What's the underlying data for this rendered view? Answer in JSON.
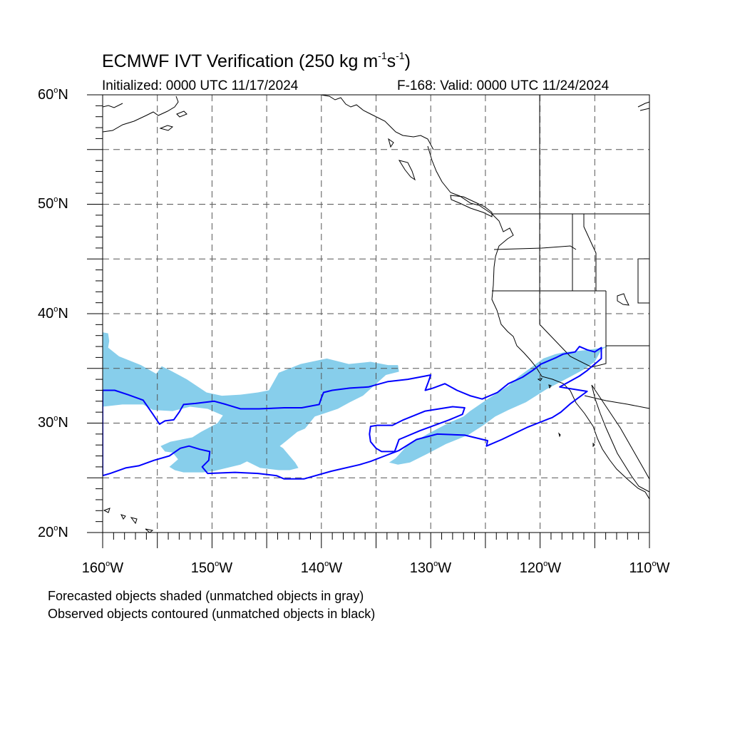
{
  "title": {
    "text": "ECMWF IVT Verification (250 kg m",
    "exp1": "-1",
    "mid": "s",
    "exp2": "-1",
    "end": ")"
  },
  "init_text": "Initialized: 0000 UTC 11/17/2024",
  "valid_text": "F-168: Valid: 0000 UTC 11/24/2024",
  "lat_labels": [
    {
      "num": "60",
      "deg": "o",
      "hem": "N"
    },
    {
      "num": "50",
      "deg": "o",
      "hem": "N"
    },
    {
      "num": "40",
      "deg": "o",
      "hem": "N"
    },
    {
      "num": "30",
      "deg": "o",
      "hem": "N"
    },
    {
      "num": "20",
      "deg": "o",
      "hem": "N"
    }
  ],
  "lon_labels": [
    {
      "num": "160",
      "deg": "o",
      "hem": "W"
    },
    {
      "num": "150",
      "deg": "o",
      "hem": "W"
    },
    {
      "num": "140",
      "deg": "o",
      "hem": "W"
    },
    {
      "num": "130",
      "deg": "o",
      "hem": "W"
    },
    {
      "num": "120",
      "deg": "o",
      "hem": "W"
    },
    {
      "num": "110",
      "deg": "o",
      "hem": "W"
    }
  ],
  "notes": [
    "Forecasted objects shaded (unmatched objects in gray)",
    "Observed objects contoured (unmatched objects in black)"
  ],
  "map": {
    "lon_range": [
      -160,
      -110
    ],
    "lat_range": [
      20,
      60
    ],
    "grid_interval_deg": 5,
    "colors": {
      "forecast_fill": "#87ceeb",
      "observed_contour": "#0000ff",
      "coastline": "#000000",
      "grid": "#555555"
    },
    "forecast_objects": [
      [
        [
          -160,
          38.3
        ],
        [
          -159.5,
          38.2
        ],
        [
          -159.4,
          37.5
        ],
        [
          -159.5,
          36.9
        ],
        [
          -158.5,
          36.1
        ],
        [
          -156.5,
          35.3
        ],
        [
          -155.1,
          34.5
        ],
        [
          -154.6,
          35.2
        ],
        [
          -153.8,
          34.8
        ],
        [
          -152.3,
          34.0
        ],
        [
          -150.5,
          32.8
        ],
        [
          -149.1,
          32.5
        ],
        [
          -147.4,
          32.6
        ],
        [
          -145.8,
          32.8
        ],
        [
          -144.8,
          33.0
        ],
        [
          -143.9,
          34.6
        ],
        [
          -141.9,
          35.4
        ],
        [
          -139.5,
          35.9
        ],
        [
          -137.5,
          35.4
        ],
        [
          -135.5,
          35.6
        ],
        [
          -133.9,
          35.3
        ],
        [
          -133,
          35.3
        ],
        [
          -132.9,
          34.7
        ],
        [
          -134.1,
          34.4
        ],
        [
          -136.2,
          32.5
        ],
        [
          -137.4,
          31.9
        ],
        [
          -138.5,
          31.3
        ],
        [
          -140,
          30.8
        ],
        [
          -140.6,
          30.6
        ],
        [
          -141.5,
          29.5
        ],
        [
          -142.2,
          29.2
        ],
        [
          -143.3,
          28.3
        ],
        [
          -143.8,
          27.9
        ],
        [
          -143.5,
          27.7
        ],
        [
          -142.4,
          26.4
        ],
        [
          -142.1,
          25.9
        ],
        [
          -142.9,
          25.7
        ],
        [
          -143.9,
          25.7
        ],
        [
          -145.6,
          25.9
        ],
        [
          -146.8,
          26.5
        ],
        [
          -147.4,
          26.2
        ],
        [
          -149.9,
          25.6
        ],
        [
          -150.8,
          25.5
        ],
        [
          -152.6,
          25.5
        ],
        [
          -153.4,
          25.7
        ],
        [
          -153.9,
          26.0
        ],
        [
          -153.1,
          26.7
        ],
        [
          -153.6,
          27.3
        ],
        [
          -154.3,
          27.4
        ],
        [
          -154.7,
          27.9
        ],
        [
          -153.8,
          28.3
        ],
        [
          -151.8,
          28.7
        ],
        [
          -151.0,
          29.2
        ],
        [
          -149.5,
          30.0
        ],
        [
          -149.0,
          30.7
        ],
        [
          -150.4,
          31.3
        ],
        [
          -152.0,
          31.5
        ],
        [
          -153.6,
          31.1
        ],
        [
          -155.4,
          31.2
        ],
        [
          -156.3,
          31.7
        ],
        [
          -158.2,
          31.7
        ],
        [
          -160,
          31.5
        ]
      ],
      [
        [
          -133.8,
          26.4
        ],
        [
          -133.2,
          26.8
        ],
        [
          -132.2,
          27.9
        ],
        [
          -130.3,
          29.0
        ],
        [
          -128.4,
          30.0
        ],
        [
          -127.0,
          30.6
        ],
        [
          -126.4,
          31.1
        ],
        [
          -124.8,
          32.2
        ],
        [
          -122.9,
          33.4
        ],
        [
          -121.9,
          34.3
        ],
        [
          -120.8,
          35.1
        ],
        [
          -119.7,
          35.9
        ],
        [
          -118.6,
          36.3
        ],
        [
          -117.7,
          36.5
        ],
        [
          -116.5,
          36.6
        ],
        [
          -115.6,
          36.7
        ],
        [
          -114.3,
          36.9
        ],
        [
          -113.7,
          37.1
        ],
        [
          -114.4,
          36.7
        ],
        [
          -115.0,
          35.6
        ],
        [
          -116.0,
          34.9
        ],
        [
          -117.5,
          34.1
        ],
        [
          -119.4,
          33.1
        ],
        [
          -121.3,
          31.9
        ],
        [
          -122.9,
          31.2
        ],
        [
          -124.1,
          30.6
        ],
        [
          -125.2,
          29.8
        ],
        [
          -126.6,
          28.9
        ],
        [
          -128.6,
          28.1
        ],
        [
          -130.3,
          27.2
        ],
        [
          -131.9,
          26.4
        ],
        [
          -133.0,
          26.2
        ]
      ]
    ],
    "observed_objects": [
      [
        [
          -160,
          33.0
        ],
        [
          -158.9,
          33.0
        ],
        [
          -157.7,
          32.6
        ],
        [
          -156.3,
          32.1
        ],
        [
          -155.4,
          30.8
        ],
        [
          -154.8,
          29.9
        ],
        [
          -154.3,
          30.2
        ],
        [
          -153.5,
          30.3
        ],
        [
          -153.0,
          31.0
        ],
        [
          -152.6,
          31.7
        ],
        [
          -151.5,
          31.8
        ],
        [
          -149.8,
          32.0
        ],
        [
          -148.7,
          31.7
        ],
        [
          -147.4,
          31.3
        ],
        [
          -145.7,
          31.3
        ],
        [
          -143.4,
          31.4
        ],
        [
          -141.8,
          31.4
        ],
        [
          -140.2,
          31.7
        ],
        [
          -140.0,
          32.3
        ],
        [
          -139.8,
          32.8
        ],
        [
          -139.0,
          33.0
        ],
        [
          -137.4,
          33.2
        ],
        [
          -135.7,
          33.3
        ],
        [
          -133.9,
          33.8
        ],
        [
          -132.1,
          34.0
        ],
        [
          -130.5,
          34.3
        ],
        [
          -130.0,
          34.4
        ],
        [
          -130.2,
          33.8
        ],
        [
          -130.5,
          33.0
        ],
        [
          -129.8,
          33.2
        ],
        [
          -128.7,
          33.6
        ],
        [
          -127.6,
          33.0
        ],
        [
          -126.4,
          32.5
        ],
        [
          -125.3,
          32.2
        ],
        [
          -123.9,
          32.8
        ],
        [
          -122.9,
          33.6
        ],
        [
          -121.6,
          34.2
        ],
        [
          -120.7,
          34.8
        ],
        [
          -119.9,
          35.4
        ],
        [
          -118.5,
          36.0
        ],
        [
          -117.9,
          36.3
        ],
        [
          -116.8,
          36.5
        ],
        [
          -116.4,
          37.0
        ],
        [
          -115.7,
          36.7
        ],
        [
          -115.0,
          36.5
        ],
        [
          -114.4,
          36.9
        ],
        [
          -114.4,
          35.9
        ],
        [
          -115.7,
          34.8
        ],
        [
          -116.4,
          34.3
        ],
        [
          -118.2,
          33.3
        ],
        [
          -115.7,
          32.9
        ],
        [
          -117.2,
          31.8
        ],
        [
          -118.1,
          31.0
        ],
        [
          -118.9,
          30.5
        ],
        [
          -119.2,
          30.4
        ],
        [
          -121.2,
          29.6
        ],
        [
          -123.5,
          28.5
        ],
        [
          -124.9,
          27.9
        ],
        [
          -124.8,
          28.4
        ],
        [
          -126.9,
          28.9
        ],
        [
          -129.4,
          29.0
        ],
        [
          -131.3,
          28.5
        ],
        [
          -132.9,
          27.5
        ],
        [
          -134.2,
          27.0
        ],
        [
          -135.5,
          26.5
        ],
        [
          -136.5,
          26.2
        ],
        [
          -139.1,
          25.6
        ],
        [
          -141.6,
          24.9
        ],
        [
          -143.4,
          24.9
        ],
        [
          -144.1,
          25.2
        ],
        [
          -145.8,
          25.4
        ],
        [
          -147.9,
          25.5
        ],
        [
          -150.4,
          25.4
        ],
        [
          -150.9,
          26.0
        ],
        [
          -150.3,
          26.6
        ],
        [
          -150.2,
          27.4
        ],
        [
          -151.1,
          27.6
        ],
        [
          -152.1,
          27.9
        ],
        [
          -152.9,
          27.7
        ],
        [
          -153.9,
          27.0
        ],
        [
          -155.3,
          26.6
        ],
        [
          -156.7,
          26.1
        ],
        [
          -157.9,
          25.9
        ],
        [
          -159.3,
          25.4
        ],
        [
          -160,
          25.2
        ]
      ],
      [
        [
          -133.3,
          27.4
        ],
        [
          -134.5,
          27.4
        ],
        [
          -135.0,
          27.7
        ],
        [
          -135.5,
          28.3
        ],
        [
          -135.6,
          29.0
        ],
        [
          -135.5,
          29.7
        ],
        [
          -134.9,
          29.8
        ],
        [
          -133.5,
          29.8
        ],
        [
          -132.5,
          30.3
        ],
        [
          -130.5,
          31.1
        ],
        [
          -128.0,
          31.5
        ],
        [
          -126.9,
          31.4
        ],
        [
          -127.1,
          30.8
        ],
        [
          -128.3,
          30.3
        ],
        [
          -131.0,
          29.3
        ],
        [
          -132.9,
          28.5
        ]
      ]
    ]
  }
}
